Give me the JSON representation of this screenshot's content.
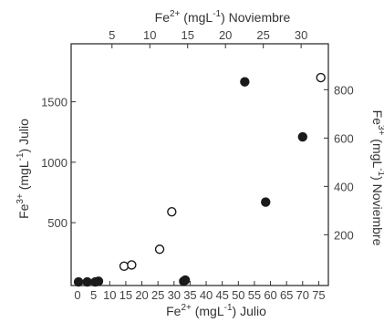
{
  "chart_data": {
    "type": "scatter",
    "x_bottom": {
      "label_prefix": "Fe",
      "label_sup": "2+",
      "label_mid": " (mgL",
      "label_sup2": "-1",
      "label_suffix": ") Julio",
      "range": [
        -2,
        78
      ],
      "ticks": [
        "0",
        "5",
        "10",
        "15",
        "20",
        "25",
        "30",
        "35",
        "40",
        "45",
        "50",
        "55",
        "60",
        "65",
        "70",
        "75"
      ],
      "tick_values": [
        0,
        5,
        10,
        15,
        20,
        25,
        30,
        35,
        40,
        45,
        50,
        55,
        60,
        65,
        70,
        75
      ]
    },
    "x_top": {
      "label_prefix": "Fe",
      "label_sup": "2+",
      "label_mid": " (mgL",
      "label_sup2": "-1",
      "label_suffix": ") Noviembre",
      "range": [
        -0.4,
        33.6
      ],
      "ticks": [
        "5",
        "10",
        "15",
        "20",
        "25",
        "30"
      ],
      "tick_values": [
        5,
        10,
        15,
        20,
        25,
        30
      ]
    },
    "y_left": {
      "label_prefix": "Fe",
      "label_sup": "3+",
      "label_mid": " (mgL",
      "label_sup2": "-1",
      "label_suffix": ") Julio",
      "range": [
        -20,
        1980
      ],
      "ticks": [
        "500",
        "1000",
        "1500"
      ],
      "tick_values": [
        500,
        1000,
        1500
      ]
    },
    "y_right": {
      "label_prefix": "Fe",
      "label_sup": "3+",
      "label_mid": " (mgL",
      "label_sup2": "-1",
      "label_suffix": ") Noviembre",
      "range": [
        -10,
        990
      ],
      "ticks": [
        "200",
        "400",
        "600",
        "800"
      ],
      "tick_values": [
        200,
        400,
        600,
        800
      ]
    },
    "series": [
      {
        "marker": "filled",
        "color": "#1a1a1a",
        "axes": "bottom-left",
        "points": [
          {
            "x": 0.3,
            "y": 10
          },
          {
            "x": 3,
            "y": 10
          },
          {
            "x": 5.5,
            "y": 10
          },
          {
            "x": 6.5,
            "y": 15
          },
          {
            "x": 33,
            "y": 15
          },
          {
            "x": 33.5,
            "y": 25
          },
          {
            "x": 52,
            "y": 1665
          },
          {
            "x": 58.5,
            "y": 670
          },
          {
            "x": 70,
            "y": 1210
          }
        ]
      },
      {
        "marker": "open",
        "color": "#1a1a1a",
        "axes": "top-right",
        "points": [
          {
            "x": 6.6,
            "y": 70
          },
          {
            "x": 7.6,
            "y": 75
          },
          {
            "x": 11.3,
            "y": 140
          },
          {
            "x": 12.9,
            "y": 295
          },
          {
            "x": 32.6,
            "y": 850
          }
        ]
      }
    ]
  }
}
